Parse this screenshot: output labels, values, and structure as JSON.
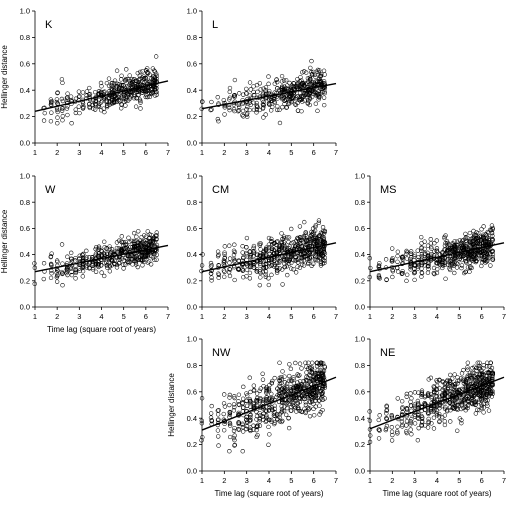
{
  "figure": {
    "y_axis_label": "Hellinger distance",
    "x_axis_label": "Time lag (square root of years)"
  },
  "chart_data": [
    {
      "type": "scatter",
      "panel_label": "K",
      "xlim": [
        1,
        7
      ],
      "ylim": [
        0,
        1
      ],
      "xticks": [
        1,
        2,
        3,
        4,
        5,
        6,
        7
      ],
      "yticks": [
        0.0,
        0.2,
        0.4,
        0.6,
        0.8,
        1.0
      ],
      "x_range": [
        1,
        6.6
      ],
      "y_spread": 0.055,
      "n_points": 420,
      "seed": 11,
      "trend": {
        "x": [
          1,
          7
        ],
        "y": [
          0.24,
          0.47
        ]
      },
      "xlabel": "",
      "ylabel": "Hellinger distance"
    },
    {
      "type": "scatter",
      "panel_label": "L",
      "xlim": [
        1,
        7
      ],
      "ylim": [
        0,
        1
      ],
      "xticks": [
        1,
        2,
        3,
        4,
        5,
        6,
        7
      ],
      "yticks": [
        0.0,
        0.2,
        0.4,
        0.6,
        0.8,
        1.0
      ],
      "x_range": [
        1,
        6.6
      ],
      "y_spread": 0.06,
      "n_points": 420,
      "seed": 23,
      "trend": {
        "x": [
          1,
          7
        ],
        "y": [
          0.26,
          0.45
        ]
      },
      "xlabel": "",
      "ylabel": ""
    },
    {
      "type": "scatter",
      "panel_label": "W",
      "xlim": [
        1,
        7
      ],
      "ylim": [
        0,
        1
      ],
      "xticks": [
        1,
        2,
        3,
        4,
        5,
        6,
        7
      ],
      "yticks": [
        0.0,
        0.2,
        0.4,
        0.6,
        0.8,
        1.0
      ],
      "x_range": [
        1,
        6.6
      ],
      "y_spread": 0.055,
      "n_points": 460,
      "seed": 37,
      "trend": {
        "x": [
          1,
          7
        ],
        "y": [
          0.27,
          0.47
        ]
      },
      "xlabel": "Time lag (square root of years)",
      "ylabel": "Hellinger distance"
    },
    {
      "type": "scatter",
      "panel_label": "CM",
      "xlim": [
        1,
        7
      ],
      "ylim": [
        0,
        1
      ],
      "xticks": [
        1,
        2,
        3,
        4,
        5,
        6,
        7
      ],
      "yticks": [
        0.0,
        0.2,
        0.4,
        0.6,
        0.8,
        1.0
      ],
      "x_range": [
        1,
        6.6
      ],
      "y_spread": 0.07,
      "n_points": 560,
      "seed": 41,
      "trend": {
        "x": [
          1,
          7
        ],
        "y": [
          0.27,
          0.49
        ]
      },
      "xlabel": "",
      "ylabel": ""
    },
    {
      "type": "scatter",
      "panel_label": "MS",
      "xlim": [
        1,
        7
      ],
      "ylim": [
        0,
        1
      ],
      "xticks": [
        1,
        2,
        3,
        4,
        5,
        6,
        7
      ],
      "yticks": [
        0.0,
        0.2,
        0.4,
        0.6,
        0.8,
        1.0
      ],
      "x_range": [
        1,
        6.6
      ],
      "y_spread": 0.065,
      "n_points": 560,
      "seed": 53,
      "trend": {
        "x": [
          1,
          7
        ],
        "y": [
          0.27,
          0.49
        ]
      },
      "xlabel": "",
      "ylabel": ""
    },
    {
      "type": "scatter",
      "panel_label": "NW",
      "xlim": [
        1,
        7
      ],
      "ylim": [
        0,
        1
      ],
      "xticks": [
        1,
        2,
        3,
        4,
        5,
        6,
        7
      ],
      "yticks": [
        0.0,
        0.2,
        0.4,
        0.6,
        0.8,
        1.0
      ],
      "x_range": [
        1,
        6.6
      ],
      "y_spread": 0.09,
      "n_points": 620,
      "seed": 67,
      "trend": {
        "x": [
          1,
          7
        ],
        "y": [
          0.31,
          0.71
        ]
      },
      "xlabel": "Time lag (square root of years)",
      "ylabel": "Hellinger distance"
    },
    {
      "type": "scatter",
      "panel_label": "NE",
      "xlim": [
        1,
        7
      ],
      "ylim": [
        0,
        1
      ],
      "xticks": [
        1,
        2,
        3,
        4,
        5,
        6,
        7
      ],
      "yticks": [
        0.0,
        0.2,
        0.4,
        0.6,
        0.8,
        1.0
      ],
      "x_range": [
        1,
        6.6
      ],
      "y_spread": 0.085,
      "n_points": 620,
      "seed": 79,
      "trend": {
        "x": [
          1,
          7
        ],
        "y": [
          0.32,
          0.71
        ]
      },
      "xlabel": "Time lag (square root of years)",
      "ylabel": ""
    }
  ]
}
